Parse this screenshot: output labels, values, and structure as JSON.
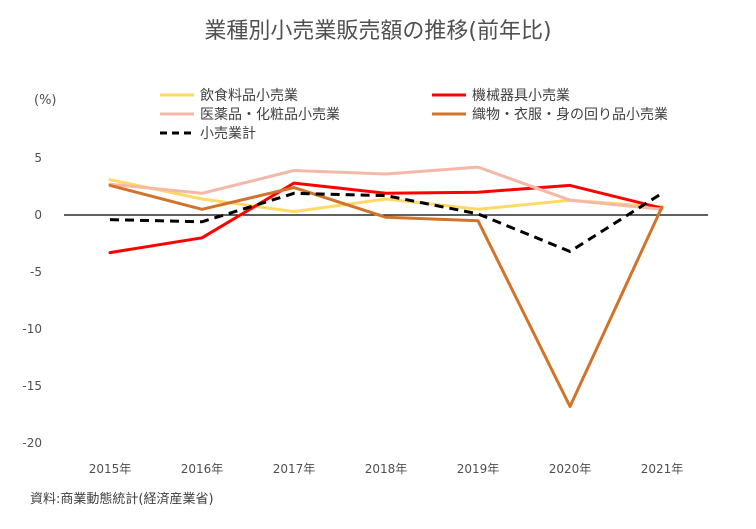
{
  "chart_data": {
    "type": "line",
    "title": "業種別小売業販売額の推移(前年比)",
    "ylabel": "(%)",
    "xlabel": "",
    "categories": [
      "2015年",
      "2016年",
      "2017年",
      "2018年",
      "2019年",
      "2020年",
      "2021年"
    ],
    "ylim": [
      -20,
      5
    ],
    "yticks": [
      5,
      0,
      -5,
      -10,
      -15,
      -20
    ],
    "grid": false,
    "legend_position": "top",
    "series": [
      {
        "name": "飲食料品小売業",
        "color": "#FFD966",
        "dashed": false,
        "values": [
          3.1,
          1.4,
          0.3,
          1.4,
          0.5,
          1.3,
          0.7
        ]
      },
      {
        "name": "機械器具小売業",
        "color": "#FF0000",
        "dashed": false,
        "values": [
          -3.3,
          -2.0,
          2.8,
          1.9,
          2.0,
          2.6,
          0.6
        ]
      },
      {
        "name": "医薬品・化粧品小売業",
        "color": "#F4B8A8",
        "dashed": false,
        "values": [
          2.7,
          1.9,
          3.9,
          3.6,
          4.2,
          1.3,
          0.5
        ]
      },
      {
        "name": "織物・衣服・身の回り品小売業",
        "color": "#D0742C",
        "dashed": false,
        "values": [
          2.6,
          0.5,
          2.4,
          -0.2,
          -0.5,
          -16.8,
          0.7
        ]
      },
      {
        "name": "小売業計",
        "color": "#000000",
        "dashed": true,
        "values": [
          -0.4,
          -0.6,
          1.9,
          1.7,
          0.1,
          -3.2,
          1.9
        ]
      }
    ]
  },
  "source_note": "資料:商業動態統計(経済産業省)"
}
